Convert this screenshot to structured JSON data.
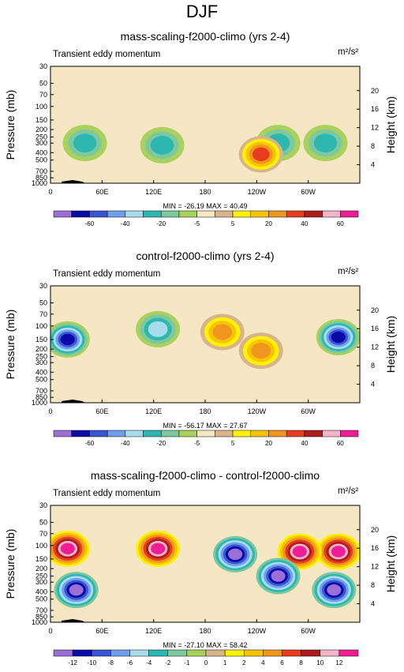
{
  "title": "DJF",
  "panels": [
    {
      "title": "mass-scaling-f2000-climo (yrs 2-4)",
      "subtitle": "Transient eddy momentum",
      "units": "m²/s²",
      "minmax": "MIN = -26.19  MAX = 40.49",
      "background": "#f5e6c4",
      "colorbar_labels": [
        "-60",
        "-40",
        "-20",
        "-5",
        "5",
        "20",
        "40",
        "60"
      ]
    },
    {
      "title": "control-f2000-climo (yrs 2-4)",
      "subtitle": "Transient eddy momentum",
      "units": "m²/s²",
      "minmax": "MIN = -56.17  MAX = 27.67",
      "background": "#f5e6c4",
      "colorbar_labels": [
        "-60",
        "-40",
        "-20",
        "-5",
        "5",
        "20",
        "40",
        "60"
      ]
    },
    {
      "title": "mass-scaling-f2000-climo - control-f2000-climo",
      "subtitle": "Transient eddy momentum",
      "units": "m²/s²",
      "minmax": "MIN = -27.10  MAX = 58.42",
      "background": "#f5e6c4",
      "colorbar_labels": [
        "-12",
        "-10",
        "-8",
        "-6",
        "-4",
        "-2",
        "-1",
        "0",
        "1",
        "2",
        "4",
        "6",
        "8",
        "10",
        "12"
      ]
    }
  ],
  "axes": {
    "ylabel": "Pressure (mb)",
    "y2label": "Height (km)",
    "pressure_ticks": [
      "30",
      "50",
      "70",
      "100",
      "150",
      "200",
      "250",
      "300",
      "400",
      "500",
      "700",
      "850",
      "1000"
    ],
    "height_ticks": [
      "4",
      "8",
      "12",
      "16",
      "20"
    ],
    "x_ticks": [
      "0",
      "60E",
      "120E",
      "180",
      "120W",
      "60W"
    ]
  },
  "colorbar_colors": [
    "#9a6fd6",
    "#0a0aa6",
    "#3a55d4",
    "#6e9eec",
    "#a8dcec",
    "#2cb8b0",
    "#7ec8a0",
    "#a9d15c",
    "#f5e6c4",
    "#d8b48a",
    "#fff200",
    "#f6c400",
    "#f0961e",
    "#e83c1e",
    "#aa1e1e",
    "#f8b4c8",
    "#f01e96"
  ],
  "chart_data": [
    {
      "type": "heatmap",
      "title": "mass-scaling-f2000-climo (yrs 2-4)",
      "xlabel": "",
      "ylabel": "Pressure (mb)",
      "y2label": "Height (km)",
      "x_range": [
        "0",
        "360"
      ],
      "y_range": [
        1000,
        30
      ],
      "y_scale": "log",
      "min": -26.19,
      "max": 40.49,
      "levels": [
        -60,
        -50,
        -40,
        -30,
        -20,
        -10,
        -5,
        -1,
        1,
        5,
        10,
        20,
        30,
        40,
        50,
        60
      ],
      "features": [
        {
          "lon": 40,
          "p": 300,
          "value": -18
        },
        {
          "lon": 130,
          "p": 320,
          "value": -12
        },
        {
          "lon": 265,
          "p": 300,
          "value": -10
        },
        {
          "lon": 320,
          "p": 300,
          "value": -15
        },
        {
          "lon": 245,
          "p": 420,
          "value": 35
        }
      ]
    },
    {
      "type": "heatmap",
      "title": "control-f2000-climo (yrs 2-4)",
      "xlabel": "",
      "ylabel": "Pressure (mb)",
      "y2label": "Height (km)",
      "x_range": [
        "0",
        "360"
      ],
      "y_range": [
        1000,
        30
      ],
      "y_scale": "log",
      "min": -56.17,
      "max": 27.67,
      "levels": [
        -60,
        -50,
        -40,
        -30,
        -20,
        -10,
        -5,
        -1,
        1,
        5,
        10,
        20,
        30,
        40,
        50,
        60
      ],
      "features": [
        {
          "lon": 20,
          "p": 150,
          "value": -50
        },
        {
          "lon": 125,
          "p": 110,
          "value": -25
        },
        {
          "lon": 335,
          "p": 140,
          "value": -56
        },
        {
          "lon": 200,
          "p": 120,
          "value": 20
        },
        {
          "lon": 245,
          "p": 210,
          "value": 25
        }
      ]
    },
    {
      "type": "heatmap",
      "title": "mass-scaling-f2000-climo - control-f2000-climo",
      "xlabel": "",
      "ylabel": "Pressure (mb)",
      "y2label": "Height (km)",
      "x_range": [
        "0",
        "360"
      ],
      "y_range": [
        1000,
        30
      ],
      "y_scale": "log",
      "min": -27.1,
      "max": 58.42,
      "levels": [
        -12,
        -10,
        -8,
        -6,
        -4,
        -2,
        -1,
        0,
        1,
        2,
        4,
        6,
        8,
        10,
        12
      ],
      "features": [
        {
          "lon": 20,
          "p": 110,
          "value": 14
        },
        {
          "lon": 125,
          "p": 110,
          "value": 14
        },
        {
          "lon": 335,
          "p": 120,
          "value": 14
        },
        {
          "lon": 290,
          "p": 120,
          "value": 14
        },
        {
          "lon": 215,
          "p": 130,
          "value": -14
        },
        {
          "lon": 265,
          "p": 250,
          "value": -14
        },
        {
          "lon": 30,
          "p": 380,
          "value": -13
        },
        {
          "lon": 330,
          "p": 380,
          "value": -13
        }
      ]
    }
  ]
}
